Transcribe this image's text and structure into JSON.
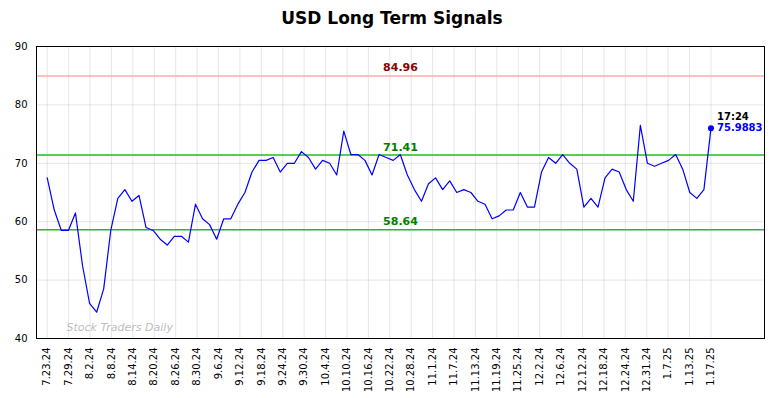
{
  "chart_data": {
    "type": "line",
    "title": "USD Long Term Signals",
    "x": [
      0,
      0.3298,
      0.6596,
      0.9894,
      1.3191,
      1.6489,
      1.9787,
      2.3085,
      2.6383,
      2.9681,
      3.2979,
      3.6277,
      3.9574,
      4.2872,
      4.617,
      4.9468,
      5.2766,
      5.6064,
      5.9362,
      6.266,
      6.5957,
      6.9255,
      7.2553,
      7.5851,
      7.9149,
      8.2447,
      8.5745,
      8.9043,
      9.234,
      9.5638,
      9.8936,
      10.2234,
      10.5532,
      10.883,
      11.2128,
      11.5426,
      11.8723,
      12.2021,
      12.5319,
      12.8617,
      13.1915,
      13.5213,
      13.8511,
      14.1809,
      14.5106,
      14.8404,
      15.1702,
      15.5,
      15.8298,
      16.1596,
      16.4894,
      16.8191,
      17.1489,
      17.4787,
      17.8085,
      18.1383,
      18.4681,
      18.7979,
      19.1277,
      19.4574,
      19.7872,
      20.117,
      20.4468,
      20.7766,
      21.1064,
      21.4362,
      21.766,
      22.0957,
      22.4255,
      22.7553,
      23.0851,
      23.4149,
      23.7447,
      24.0745,
      24.4043,
      24.734,
      25.0638,
      25.3936,
      25.7234,
      26.0532,
      26.383,
      26.7128,
      27.0426,
      27.3723,
      27.7021,
      28.0319,
      28.3617,
      28.6915,
      29.0213,
      29.3511,
      29.6809,
      30.0106,
      30.3404,
      30.6702,
      31
    ],
    "series": [
      {
        "color": "blue",
        "marker": "last",
        "values": [
          67.5,
          62.0,
          58.5,
          58.5,
          61.5,
          52.5,
          46.0,
          44.5,
          48.5,
          58.5,
          64.0,
          65.5,
          63.5,
          64.5,
          59.0,
          58.5,
          57.0,
          56.0,
          57.5,
          57.5,
          56.5,
          63.0,
          60.5,
          59.5,
          57.0,
          60.5,
          60.5,
          63.0,
          65.0,
          68.5,
          70.5,
          70.5,
          71.0,
          68.5,
          70.0,
          70.0,
          72.0,
          71.0,
          69.0,
          70.5,
          70.0,
          68.0,
          75.5,
          71.5,
          71.5,
          70.5,
          68.0,
          71.5,
          71.0,
          70.5,
          71.5,
          68.0,
          65.5,
          63.5,
          66.5,
          67.5,
          65.5,
          67.0,
          65.0,
          65.5,
          65.0,
          63.5,
          63.0,
          60.5,
          61.0,
          62.0,
          62.0,
          65.0,
          62.5,
          62.5,
          68.5,
          71.0,
          70.0,
          71.5,
          70.0,
          69.0,
          62.5,
          64.0,
          62.5,
          67.5,
          69.0,
          68.5,
          65.5,
          63.5,
          76.5,
          70.0,
          69.5,
          70.0,
          70.5,
          71.5,
          69.0,
          65.0,
          64.0,
          65.5,
          75.9883
        ]
      }
    ],
    "hlines": [
      {
        "value": 84.96,
        "color": "#ffaaaa",
        "label": "84.96",
        "label_color": "darkred"
      },
      {
        "value": 71.41,
        "color": "#22bb22",
        "label": "71.41",
        "label_color": "green"
      },
      {
        "value": 58.64,
        "color": "#22bb22",
        "label": "58.64",
        "label_color": "green"
      }
    ],
    "annotations": [
      {
        "text": "17:24",
        "color": "black"
      },
      {
        "text": "75.9883",
        "color": "blue"
      }
    ],
    "watermark": {
      "text": "Stock Traders Daily",
      "color": "#aaaaaa"
    },
    "xlim": [
      -0.5,
      33.5
    ],
    "xticks": [
      {
        "value": 0,
        "label": "7.23.24"
      },
      {
        "value": 1,
        "label": "7.29.24"
      },
      {
        "value": 2,
        "label": "8.2.24"
      },
      {
        "value": 3,
        "label": "8.8.24"
      },
      {
        "value": 4,
        "label": "8.14.24"
      },
      {
        "value": 5,
        "label": "8.20.24"
      },
      {
        "value": 6,
        "label": "8.26.24"
      },
      {
        "value": 7,
        "label": "8.30.24"
      },
      {
        "value": 8,
        "label": "9.6.24"
      },
      {
        "value": 9,
        "label": "9.12.24"
      },
      {
        "value": 10,
        "label": "9.18.24"
      },
      {
        "value": 11,
        "label": "9.24.24"
      },
      {
        "value": 12,
        "label": "9.30.24"
      },
      {
        "value": 13,
        "label": "10.4.24"
      },
      {
        "value": 14,
        "label": "10.10.24"
      },
      {
        "value": 15,
        "label": "10.16.24"
      },
      {
        "value": 16,
        "label": "10.22.24"
      },
      {
        "value": 17,
        "label": "10.28.24"
      },
      {
        "value": 18,
        "label": "11.1.24"
      },
      {
        "value": 19,
        "label": "11.7.24"
      },
      {
        "value": 20,
        "label": "11.13.24"
      },
      {
        "value": 21,
        "label": "11.19.24"
      },
      {
        "value": 22,
        "label": "11.25.24"
      },
      {
        "value": 23,
        "label": "12.2.24"
      },
      {
        "value": 24,
        "label": "12.6.24"
      },
      {
        "value": 25,
        "label": "12.12.24"
      },
      {
        "value": 26,
        "label": "12.18.24"
      },
      {
        "value": 27,
        "label": "12.24.24"
      },
      {
        "value": 28,
        "label": "12.31.24"
      },
      {
        "value": 29,
        "label": "1.7.25"
      },
      {
        "value": 30,
        "label": "1.13.25"
      },
      {
        "value": 31,
        "label": "1.17.25"
      }
    ],
    "ylim": [
      40,
      90
    ],
    "yticks": [
      40,
      50,
      60,
      70,
      80,
      90
    ],
    "grid": true
  }
}
